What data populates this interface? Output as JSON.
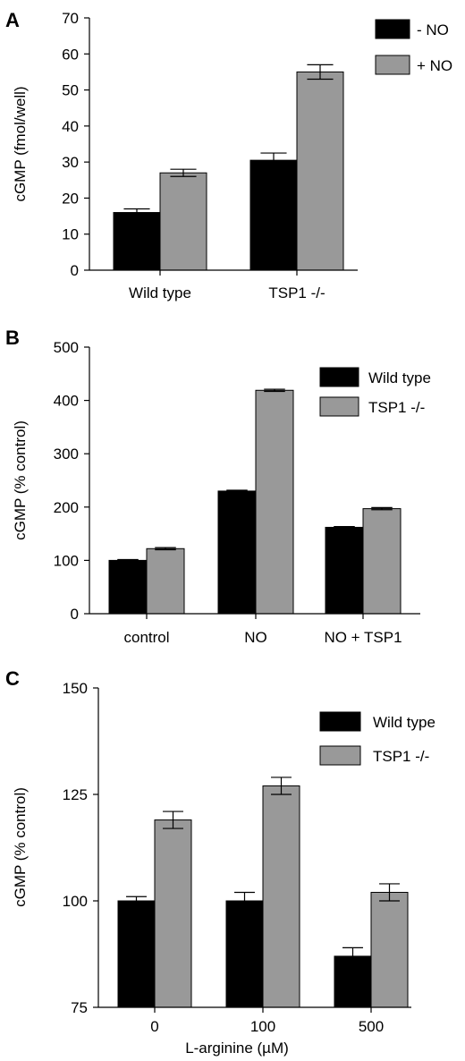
{
  "panels": [
    {
      "letter": "A",
      "chart_data": {
        "type": "bar",
        "categories": [
          "Wild type",
          "TSP1 -/-"
        ],
        "series": [
          {
            "name": "- NO",
            "color": "#000000",
            "values": [
              16,
              30.5
            ],
            "errors": [
              1.0,
              2.0
            ]
          },
          {
            "name": "+ NO",
            "color": "#999999",
            "values": [
              27,
              55
            ],
            "errors": [
              1.0,
              2.0
            ]
          }
        ],
        "ylabel": "cGMP (fmol/well)",
        "xlabel": "",
        "ylim": [
          0,
          70
        ],
        "yticks": [
          0,
          10,
          20,
          30,
          40,
          50,
          60,
          70
        ],
        "legend": "top-right",
        "grid": false
      }
    },
    {
      "letter": "B",
      "chart_data": {
        "type": "bar",
        "categories": [
          "control",
          "NO",
          "NO + TSP1"
        ],
        "series": [
          {
            "name": "Wild type",
            "color": "#000000",
            "values": [
              100,
              230,
              162
            ],
            "errors": [
              1.5,
              1.5,
              1.5
            ]
          },
          {
            "name": "TSP1 -/-",
            "color": "#999999",
            "values": [
              122,
              419,
              197
            ],
            "errors": [
              2.0,
              2.0,
              2.0
            ]
          }
        ],
        "ylabel": "cGMP (% control)",
        "xlabel": "",
        "ylim": [
          0,
          500
        ],
        "yticks": [
          0,
          100,
          200,
          300,
          400,
          500
        ],
        "legend": "top-right",
        "grid": false
      }
    },
    {
      "letter": "C",
      "chart_data": {
        "type": "bar",
        "categories": [
          "0",
          "100",
          "500"
        ],
        "series": [
          {
            "name": "Wild type",
            "color": "#000000",
            "values": [
              100,
              100,
              87
            ],
            "errors": [
              1.0,
              2.0,
              2.0
            ]
          },
          {
            "name": "TSP1 -/-",
            "color": "#999999",
            "values": [
              119,
              127,
              102
            ],
            "errors": [
              2.0,
              2.0,
              2.0
            ]
          }
        ],
        "ylabel": "cGMP (% control)",
        "xlabel": "L-arginine (µM)",
        "ylim": [
          75,
          150
        ],
        "yticks": [
          75,
          100,
          125,
          150
        ],
        "legend": "top-right",
        "grid": false
      }
    }
  ]
}
